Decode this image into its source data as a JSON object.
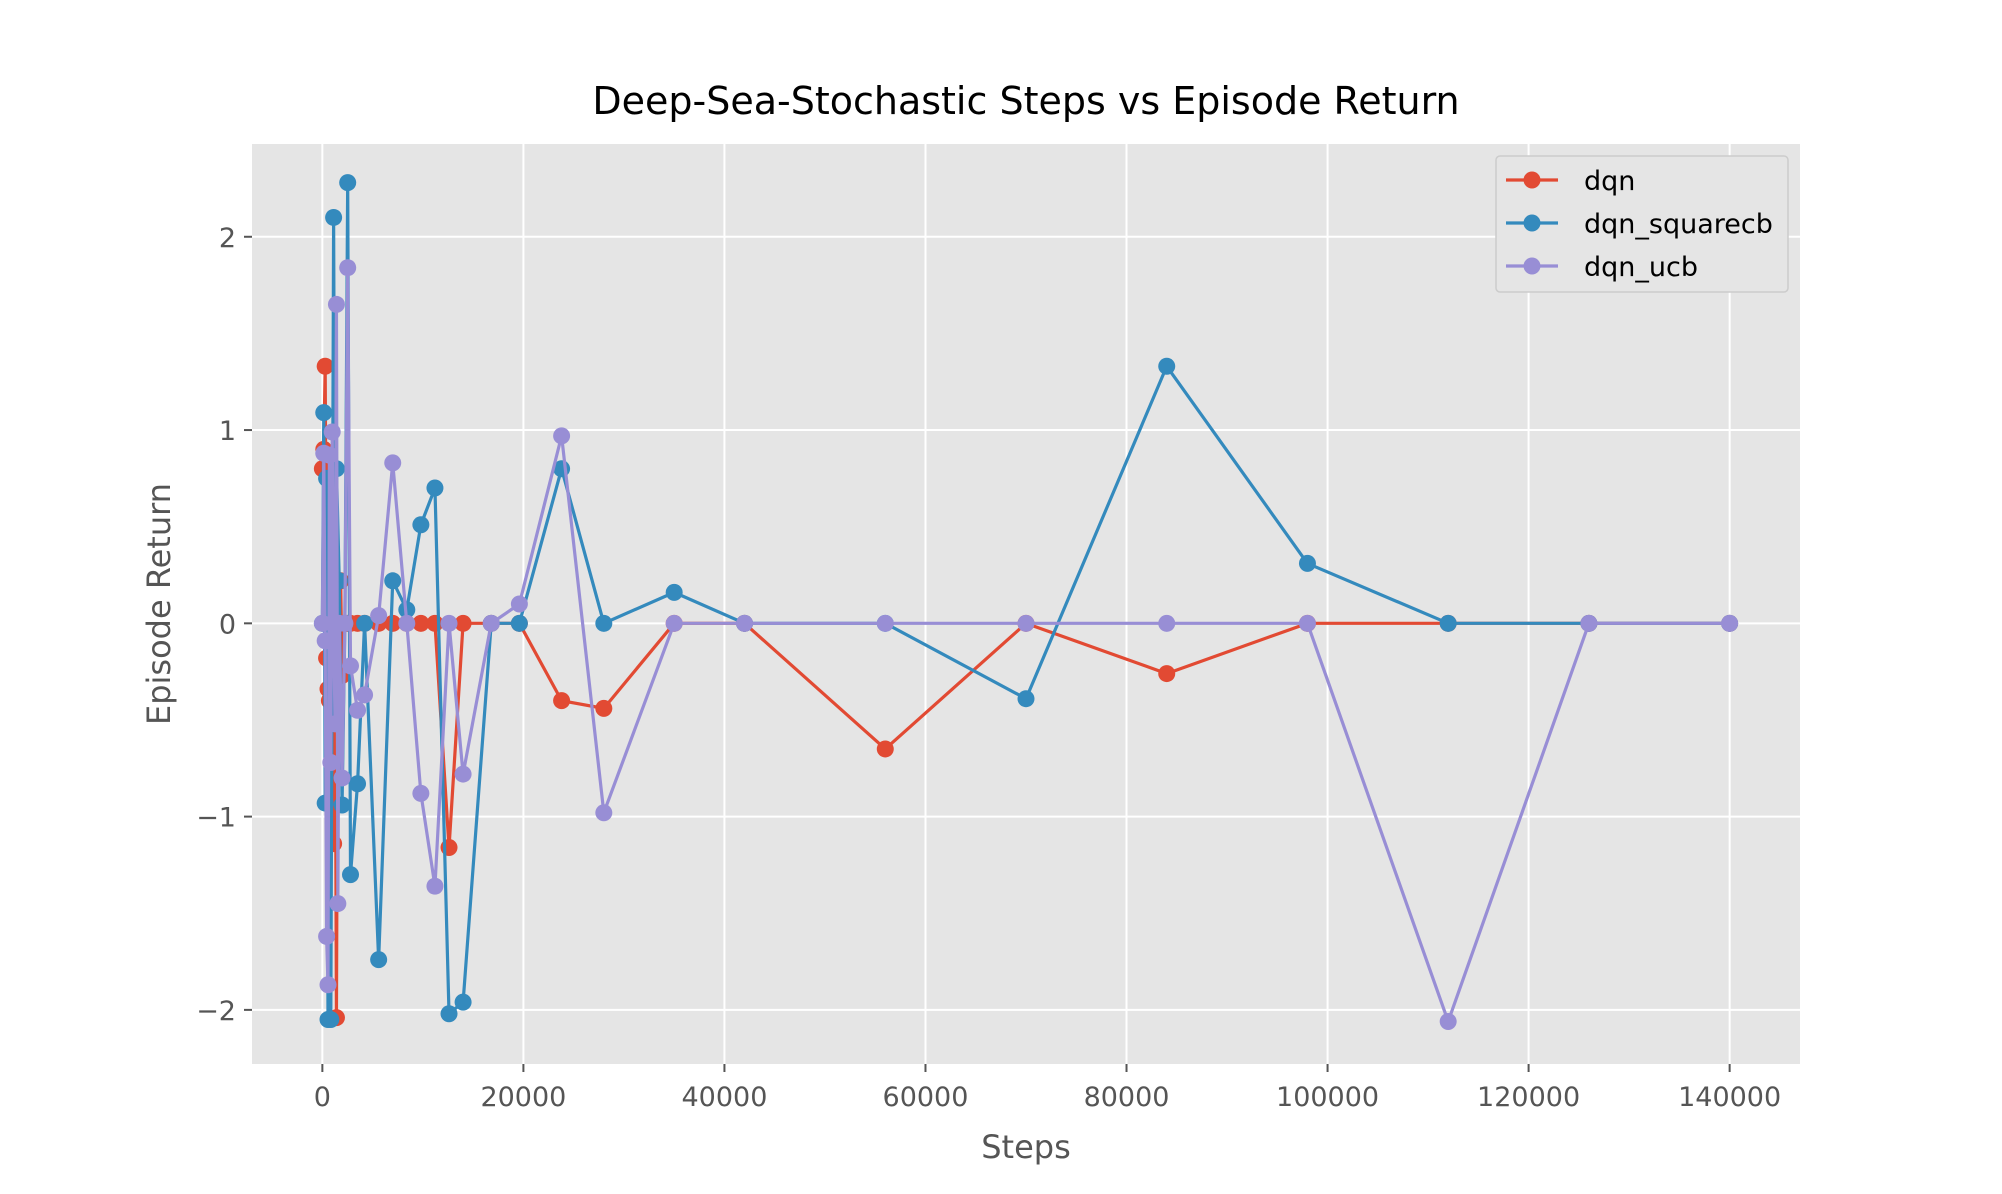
{
  "chart_data": {
    "type": "line",
    "title": "Deep-Sea-Stochastic Steps vs Episode Return",
    "xlabel": "Steps",
    "ylabel": "Episode Return",
    "xlim": [
      -7000,
      147000
    ],
    "ylim": [
      -2.28,
      2.48
    ],
    "xticks": [
      0,
      20000,
      40000,
      60000,
      80000,
      100000,
      120000,
      140000
    ],
    "xtick_labels": [
      "0",
      "20000",
      "40000",
      "60000",
      "80000",
      "100000",
      "120000",
      "140000"
    ],
    "yticks": [
      -2,
      -1,
      0,
      1,
      2
    ],
    "ytick_labels": [
      "−2",
      "−1",
      "0",
      "1",
      "2"
    ],
    "grid": true,
    "legend_position": "top-right",
    "series": [
      {
        "name": "dqn",
        "color": "#E24A33",
        "x": [
          0,
          140,
          280,
          420,
          560,
          700,
          840,
          980,
          1120,
          1260,
          1400,
          1540,
          1680,
          1820,
          1960,
          2100,
          2240,
          2380,
          2520,
          2800,
          3500,
          4200,
          5600,
          7000,
          8400,
          9800,
          11200,
          12600,
          14000,
          16800,
          19600,
          23800,
          28000,
          35000,
          42000,
          56000,
          70000,
          84000,
          98000,
          112000,
          126000,
          140000
        ],
        "y": [
          0.8,
          0.9,
          1.33,
          -0.18,
          -0.34,
          -0.4,
          -0.1,
          0.0,
          -1.14,
          0.0,
          -2.04,
          0.0,
          0.0,
          0.22,
          -0.27,
          0.0,
          0.0,
          0.0,
          0.0,
          0.0,
          0.0,
          0.0,
          0.0,
          0.0,
          0.0,
          0.0,
          0.0,
          -1.16,
          0.0,
          0.0,
          0.0,
          -0.4,
          -0.44,
          0.0,
          0.0,
          -0.65,
          0.0,
          -0.26,
          0.0,
          0.0,
          0.0,
          0.0
        ]
      },
      {
        "name": "dqn_squarecb",
        "color": "#348ABD",
        "x": [
          0,
          140,
          280,
          420,
          560,
          700,
          840,
          980,
          1120,
          1260,
          1400,
          1680,
          1960,
          2240,
          2520,
          2800,
          3500,
          4200,
          5600,
          7000,
          8400,
          9800,
          11200,
          12600,
          14000,
          16800,
          19600,
          23800,
          28000,
          35000,
          42000,
          56000,
          70000,
          84000,
          98000,
          112000,
          126000,
          140000
        ],
        "y": [
          0.0,
          1.09,
          -0.93,
          0.75,
          -2.05,
          0.0,
          -2.05,
          0.0,
          2.1,
          0.0,
          0.8,
          0.22,
          -0.94,
          0.0,
          2.28,
          -1.3,
          -0.83,
          0.0,
          -1.74,
          0.22,
          0.07,
          0.51,
          0.7,
          -2.02,
          -1.96,
          0.0,
          0.0,
          0.8,
          0.0,
          0.16,
          0.0,
          0.0,
          -0.39,
          1.33,
          0.31,
          0.0,
          0.0,
          0.0
        ]
      },
      {
        "name": "dqn_ucb",
        "color": "#988ED5",
        "x": [
          0,
          140,
          280,
          420,
          560,
          700,
          840,
          980,
          1120,
          1260,
          1400,
          1540,
          1680,
          1960,
          2240,
          2520,
          2800,
          3500,
          4200,
          5600,
          7000,
          8400,
          9800,
          11200,
          12600,
          14000,
          16800,
          19600,
          23800,
          28000,
          35000,
          42000,
          56000,
          70000,
          84000,
          98000,
          112000,
          126000,
          140000
        ],
        "y": [
          0.0,
          0.88,
          -0.09,
          -1.62,
          -1.87,
          0.87,
          -0.72,
          0.99,
          0.0,
          -0.52,
          1.65,
          -1.45,
          0.0,
          -0.8,
          0.0,
          1.84,
          -0.22,
          -0.45,
          -0.37,
          0.04,
          0.83,
          0.0,
          -0.88,
          -1.36,
          0.0,
          -0.78,
          0.0,
          0.1,
          0.97,
          -0.98,
          0.0,
          0.0,
          0.0,
          0.0,
          0.0,
          0.0,
          -2.06,
          0.0,
          0.0
        ]
      }
    ]
  }
}
